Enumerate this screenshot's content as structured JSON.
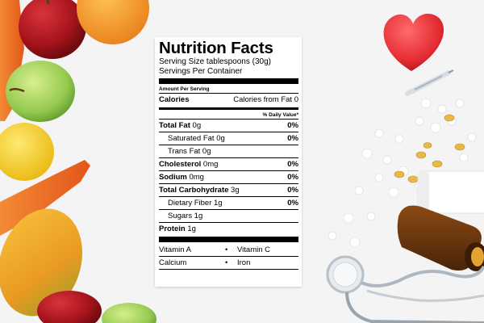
{
  "label": {
    "title": "Nutrition Facts",
    "serving_size": "Serving Size tablespoons (30g)",
    "servings_per_container": "Servings Per Container",
    "amount_per_serving": "Amount Per Serving",
    "calories": "Calories",
    "calories_from_fat": "Calories from Fat 0",
    "daily_value_header": "% Daily Value*",
    "rows": [
      {
        "label_bold": "Total Fat",
        "label_rest": " 0g",
        "dv": "0%",
        "indent": false
      },
      {
        "label_bold": "",
        "label_rest": "Saturated Fat 0g",
        "dv": "0%",
        "indent": true
      },
      {
        "label_bold": "",
        "label_rest": "Trans Fat 0g",
        "dv": "",
        "indent": true
      },
      {
        "label_bold": "Cholesterol",
        "label_rest": " 0mg",
        "dv": "0%",
        "indent": false
      },
      {
        "label_bold": "Sodium",
        "label_rest": " 0mg",
        "dv": "0%",
        "indent": false
      },
      {
        "label_bold": "Total Carbohydrate",
        "label_rest": " 3g",
        "dv": "0%",
        "indent": false
      },
      {
        "label_bold": "",
        "label_rest": "Dietary Fiber 1g",
        "dv": "0%",
        "indent": true
      },
      {
        "label_bold": "",
        "label_rest": "Sugars 1g",
        "dv": "",
        "indent": true
      },
      {
        "label_bold": "Protein",
        "label_rest": " 1g",
        "dv": "",
        "indent": false
      }
    ],
    "vitamins": [
      {
        "left": "Vitamin A",
        "bullet": "•",
        "right": "Vitamin C"
      },
      {
        "left": "Calcium",
        "bullet": "•",
        "right": "Iron"
      }
    ]
  },
  "colors": {
    "background": "#f4f4f5",
    "heart": "#e8323a",
    "apple_red": "#b3151d",
    "apple_green": "#9fd15a",
    "orange": "#f39a1e",
    "lemon": "#f7cf1d",
    "carrot": "#ee6a1c",
    "papaya": "#e9a126",
    "bottle": "#6b3810"
  }
}
